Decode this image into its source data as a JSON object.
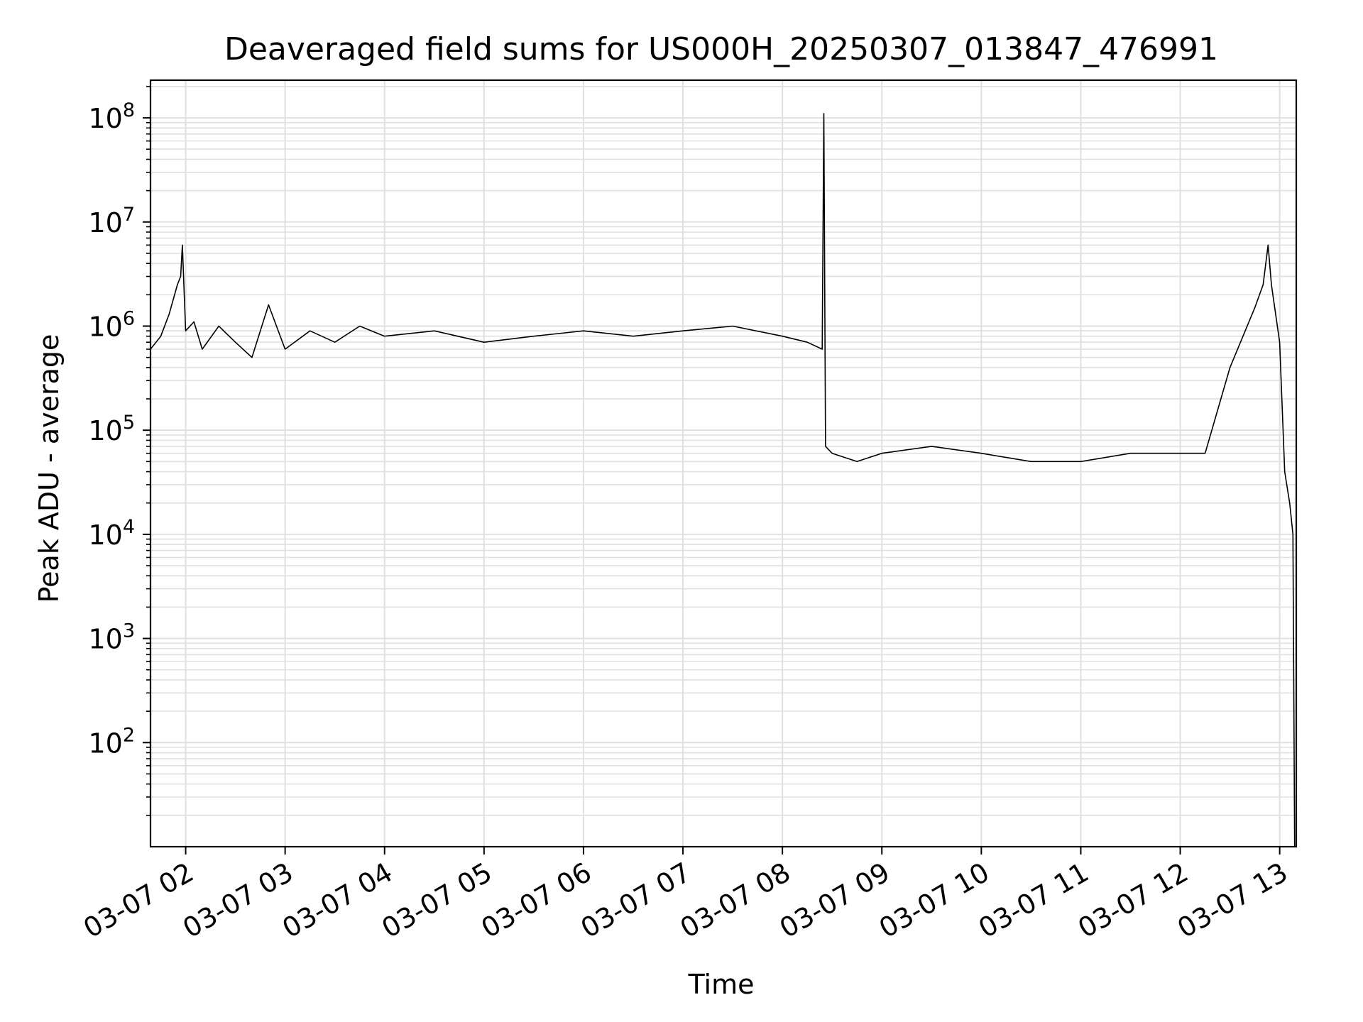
{
  "chart_data": {
    "type": "line",
    "title": "Deaveraged field sums for US000H_20250307_013847_476991",
    "xlabel": "Time",
    "ylabel": "Peak ADU - average",
    "yscale": "log",
    "ylim": [
      10,
      230000000
    ],
    "xlim": [
      "2025-03-07 01:38:47",
      "2025-03-07 13:10:00"
    ],
    "grid": true,
    "colors": {
      "line": "#000000",
      "grid": "#e0e0e0",
      "axes": "#000000"
    },
    "x_ticks": [
      {
        "value": "2025-03-07 02:00",
        "label": "03-07 02"
      },
      {
        "value": "2025-03-07 03:00",
        "label": "03-07 03"
      },
      {
        "value": "2025-03-07 04:00",
        "label": "03-07 04"
      },
      {
        "value": "2025-03-07 05:00",
        "label": "03-07 05"
      },
      {
        "value": "2025-03-07 06:00",
        "label": "03-07 06"
      },
      {
        "value": "2025-03-07 07:00",
        "label": "03-07 07"
      },
      {
        "value": "2025-03-07 08:00",
        "label": "03-07 08"
      },
      {
        "value": "2025-03-07 09:00",
        "label": "03-07 09"
      },
      {
        "value": "2025-03-07 10:00",
        "label": "03-07 10"
      },
      {
        "value": "2025-03-07 11:00",
        "label": "03-07 11"
      },
      {
        "value": "2025-03-07 12:00",
        "label": "03-07 12"
      },
      {
        "value": "2025-03-07 13:00",
        "label": "03-07 13"
      }
    ],
    "y_ticks": [
      {
        "value": 100,
        "base": "10",
        "exp": "2"
      },
      {
        "value": 1000,
        "base": "10",
        "exp": "3"
      },
      {
        "value": 10000,
        "base": "10",
        "exp": "4"
      },
      {
        "value": 100000,
        "base": "10",
        "exp": "5"
      },
      {
        "value": 1000000,
        "base": "10",
        "exp": "6"
      },
      {
        "value": 10000000,
        "base": "10",
        "exp": "7"
      },
      {
        "value": 100000000,
        "base": "10",
        "exp": "8"
      }
    ],
    "series": [
      {
        "x": [
          "2025-03-07 01:38:47",
          "2025-03-07 01:45",
          "2025-03-07 01:50",
          "2025-03-07 01:55",
          "2025-03-07 01:57",
          "2025-03-07 01:58",
          "2025-03-07 02:00",
          "2025-03-07 02:05",
          "2025-03-07 02:10",
          "2025-03-07 02:20",
          "2025-03-07 02:30",
          "2025-03-07 02:40",
          "2025-03-07 02:50",
          "2025-03-07 03:00",
          "2025-03-07 03:15",
          "2025-03-07 03:30",
          "2025-03-07 03:45",
          "2025-03-07 04:00",
          "2025-03-07 04:30",
          "2025-03-07 05:00",
          "2025-03-07 05:30",
          "2025-03-07 06:00",
          "2025-03-07 06:30",
          "2025-03-07 07:00",
          "2025-03-07 07:30",
          "2025-03-07 08:00",
          "2025-03-07 08:15",
          "2025-03-07 08:24",
          "2025-03-07 08:25",
          "2025-03-07 08:26",
          "2025-03-07 08:30",
          "2025-03-07 08:45",
          "2025-03-07 09:00",
          "2025-03-07 09:30",
          "2025-03-07 10:00",
          "2025-03-07 10:30",
          "2025-03-07 11:00",
          "2025-03-07 11:30",
          "2025-03-07 12:00",
          "2025-03-07 12:15",
          "2025-03-07 12:30",
          "2025-03-07 12:45",
          "2025-03-07 12:50",
          "2025-03-07 12:53",
          "2025-03-07 12:55",
          "2025-03-07 13:00",
          "2025-03-07 13:03",
          "2025-03-07 13:06",
          "2025-03-07 13:08",
          "2025-03-07 13:09"
        ],
        "values": [
          600000,
          800000,
          1300000,
          2500000,
          3000000,
          6000000,
          900000,
          1100000,
          600000,
          1000000,
          700000,
          500000,
          1600000,
          600000,
          900000,
          700000,
          1000000,
          800000,
          900000,
          700000,
          800000,
          900000,
          800000,
          900000,
          1000000,
          800000,
          700000,
          600000,
          110000000,
          70000,
          60000,
          50000,
          60000,
          70000,
          60000,
          50000,
          50000,
          60000,
          60000,
          60000,
          400000,
          1500000,
          2500000,
          6000000,
          2500000,
          700000,
          40000,
          20000,
          10000,
          10
        ]
      }
    ]
  }
}
